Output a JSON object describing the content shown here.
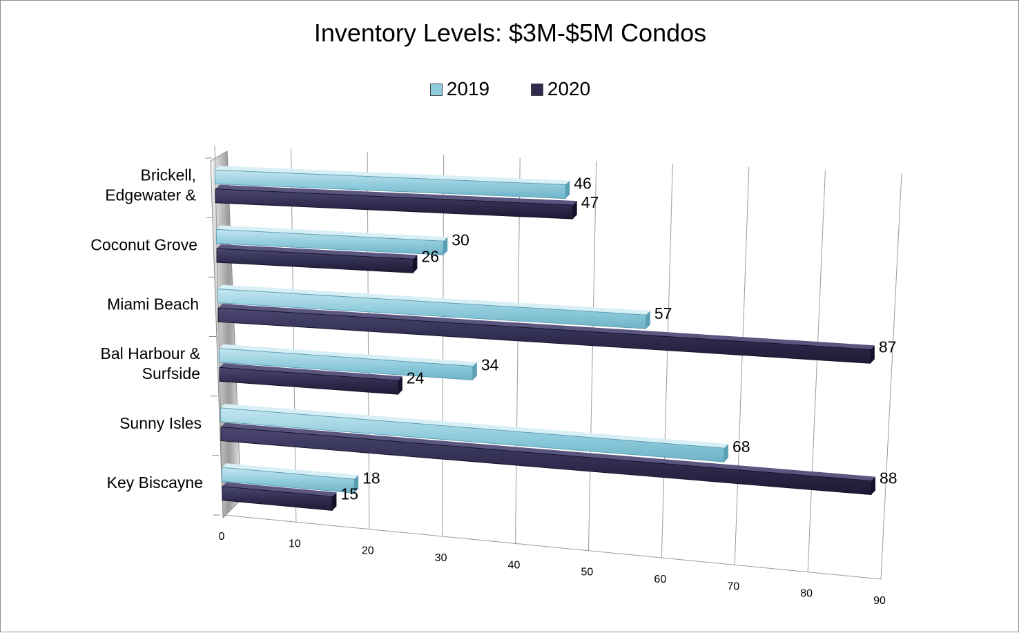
{
  "chart_data": {
    "type": "bar",
    "orientation": "horizontal",
    "style": "3d-perspective",
    "title": "Inventory Levels: $3M-$5M Condos",
    "xlabel": "",
    "ylabel": "",
    "categories": [
      [
        "Brickell,",
        "Edgewater &"
      ],
      [
        "Coconut Grove"
      ],
      [
        "Miami Beach"
      ],
      [
        "Bal Harbour &",
        "Surfside"
      ],
      [
        "Sunny Isles"
      ],
      [
        "Key Biscayne"
      ]
    ],
    "series": [
      {
        "name": "2019",
        "values": [
          46,
          30,
          57,
          34,
          68,
          18
        ],
        "color": "#8ecbdc"
      },
      {
        "name": "2020",
        "values": [
          47,
          26,
          87,
          24,
          88,
          15
        ],
        "color": "#2f2c4f"
      }
    ],
    "xlim": [
      0,
      90
    ],
    "ticks": [
      "0",
      "10",
      "20",
      "30",
      "40",
      "50",
      "60",
      "70",
      "80",
      "90"
    ],
    "grid": true,
    "legend_position": "top-center"
  }
}
